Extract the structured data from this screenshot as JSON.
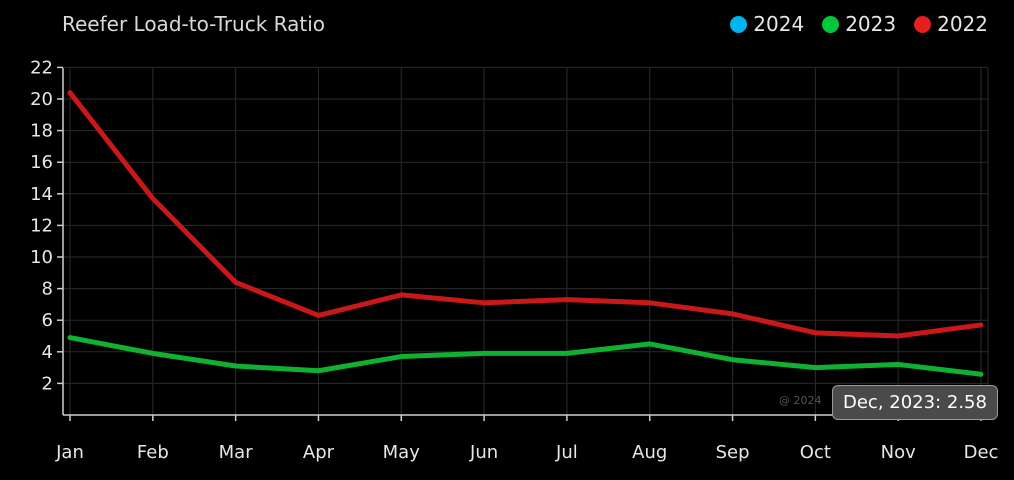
{
  "chart_data": {
    "type": "line",
    "title": "Reefer Load-to-Truck Ratio",
    "categories": [
      "Jan",
      "Feb",
      "Mar",
      "Apr",
      "May",
      "Jun",
      "Jul",
      "Aug",
      "Sep",
      "Oct",
      "Nov",
      "Dec"
    ],
    "ylim": [
      0,
      22
    ],
    "yticks": [
      2,
      4,
      6,
      8,
      10,
      12,
      14,
      16,
      18,
      20,
      22
    ],
    "grid": true,
    "legend_position": "top-right",
    "legend": [
      {
        "name": "2024",
        "color": "#00b4f0"
      },
      {
        "name": "2023",
        "color": "#00c83c"
      },
      {
        "name": "2022",
        "color": "#e61e1e"
      }
    ],
    "series": [
      {
        "name": "2022",
        "color": "#c81818",
        "values": [
          20.4,
          13.7,
          8.4,
          6.3,
          7.6,
          7.1,
          7.3,
          7.1,
          6.4,
          5.2,
          5.0,
          5.7
        ]
      },
      {
        "name": "2023",
        "color": "#10b030",
        "values": [
          4.9,
          3.9,
          3.1,
          2.8,
          3.7,
          3.9,
          3.9,
          4.5,
          3.5,
          3.0,
          3.2,
          2.58
        ]
      }
    ],
    "tooltip": "Dec, 2023: 2.58",
    "watermark": "@ 2024"
  }
}
